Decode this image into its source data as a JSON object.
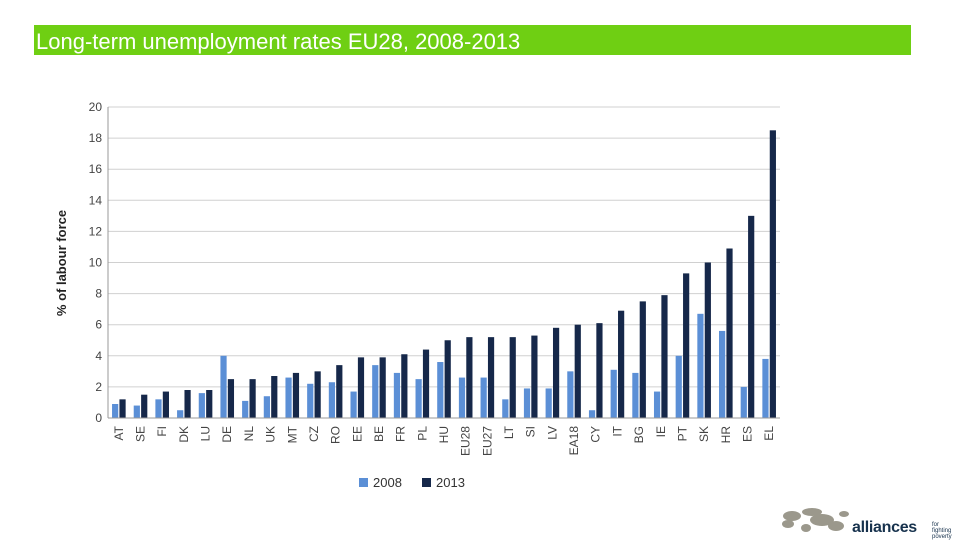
{
  "header": {
    "title": "Long-term unemployment rates EU28, 2008-2013"
  },
  "colors": {
    "title_bg": "#6fcf13",
    "series_2008": "#5b8fd6",
    "series_2013": "#16284a",
    "grid": "#d0d0d0"
  },
  "logo": {
    "name": "alliances",
    "tagline": "for fighting poverty",
    "icon": "world-map-icon"
  },
  "chart_data": {
    "type": "bar",
    "title": "",
    "xlabel": "",
    "ylabel": "% of labour force",
    "ylim": [
      0,
      20
    ],
    "yticks": [
      0,
      2,
      4,
      6,
      8,
      10,
      12,
      14,
      16,
      18,
      20
    ],
    "grid": true,
    "legend": "bottom",
    "categories": [
      "AT",
      "SE",
      "FI",
      "DK",
      "LU",
      "DE",
      "NL",
      "UK",
      "MT",
      "CZ",
      "RO",
      "EE",
      "BE",
      "FR",
      "PL",
      "HU",
      "EU28",
      "EU27",
      "LT",
      "SI",
      "LV",
      "EA18",
      "CY",
      "IT",
      "BG",
      "IE",
      "PT",
      "SK",
      "HR",
      "ES",
      "EL"
    ],
    "series": [
      {
        "name": "2008",
        "values": [
          0.9,
          0.8,
          1.2,
          0.5,
          1.6,
          4.0,
          1.1,
          1.4,
          2.6,
          2.2,
          2.3,
          1.7,
          3.4,
          2.9,
          2.5,
          3.6,
          2.6,
          2.6,
          1.2,
          1.9,
          1.9,
          3.0,
          0.5,
          3.1,
          2.9,
          1.7,
          4.0,
          6.7,
          5.6,
          2.0,
          3.8
        ]
      },
      {
        "name": "2013",
        "values": [
          1.2,
          1.5,
          1.7,
          1.8,
          1.8,
          2.5,
          2.5,
          2.7,
          2.9,
          3.0,
          3.4,
          3.9,
          3.9,
          4.1,
          4.4,
          5.0,
          5.2,
          5.2,
          5.2,
          5.3,
          5.8,
          6.0,
          6.1,
          6.9,
          7.5,
          7.9,
          9.3,
          10.0,
          10.9,
          13.0,
          18.5
        ]
      }
    ]
  }
}
